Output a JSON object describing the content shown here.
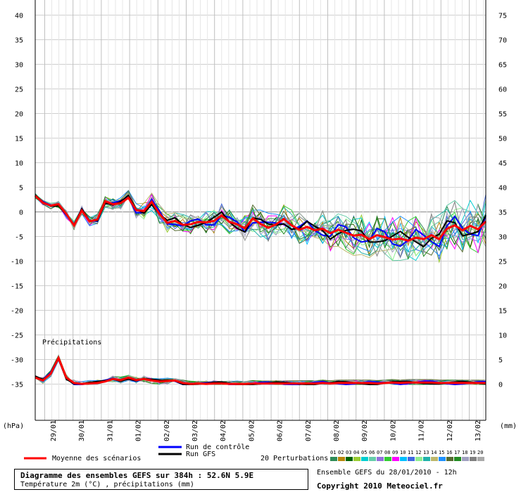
{
  "chart_data": {
    "type": "line",
    "left_axis": {
      "ticks": [
        40,
        35,
        30,
        25,
        20,
        15,
        10,
        5,
        0,
        -5,
        -10,
        -15,
        -20,
        -25,
        -30,
        -35
      ],
      "unit": "(hPa)"
    },
    "right_axis": {
      "ticks": [
        75,
        70,
        65,
        60,
        55,
        50,
        45,
        40,
        35,
        30,
        25,
        20,
        15,
        10,
        5,
        0
      ],
      "unit": "(mm)"
    },
    "x_labels": [
      "29/01",
      "30/01",
      "31/01",
      "01/02",
      "02/02",
      "03/02",
      "04/02",
      "05/02",
      "06/02",
      "07/02",
      "08/02",
      "09/02",
      "10/02",
      "11/02",
      "12/02",
      "13/02"
    ],
    "precip_label": "Précipitations",
    "legend": {
      "mean": "Moyenne des scénarios",
      "control": "Run de contrôle",
      "gfs": "Run GFS",
      "perturbations": "20 Perturbations",
      "perturbation_ids": [
        "01",
        "02",
        "03",
        "04",
        "05",
        "06",
        "07",
        "08",
        "09",
        "10",
        "11",
        "12",
        "13",
        "14",
        "15",
        "16",
        "17",
        "18",
        "19",
        "20"
      ],
      "perturbation_colors": [
        "#2e8b57",
        "#b8860b",
        "#006400",
        "#9acd32",
        "#00ced1",
        "#66cdaa",
        "#9370db",
        "#32cd32",
        "#ff00ff",
        "#00bfff",
        "#4169e1",
        "#90ee90",
        "#20b2aa",
        "#bdb76b",
        "#1e90ff",
        "#556b2f",
        "#228b22",
        "#a0a0c0",
        "#808080",
        "#a9a9a9"
      ]
    },
    "colors": {
      "mean": "#ff0000",
      "control": "#0000ff",
      "gfs": "#000000"
    },
    "temperature_mean": [
      3.2,
      1.8,
      1.2,
      1.5,
      -0.5,
      -2.8,
      0.2,
      -2.0,
      -1.6,
      2.1,
      1.5,
      1.7,
      2.8,
      0.3,
      0.1,
      2.0,
      -0.5,
      -2.3,
      -1.9,
      -2.7,
      -2.6,
      -2.1,
      -2.2,
      -1.9,
      -0.8,
      -2.1,
      -2.6,
      -3.4,
      -1.4,
      -2.5,
      -3.3,
      -2.6,
      -1.5,
      -2.8,
      -3.7,
      -3.1,
      -3.8,
      -3.5,
      -4.4,
      -3.7,
      -4.3,
      -4.9,
      -4.7,
      -5.6,
      -4.8,
      -5.2,
      -5.7,
      -5.5,
      -5.9,
      -5.3,
      -5.6,
      -4.8,
      -5.6,
      -3.5,
      -2.8,
      -3.8,
      -2.9,
      -3.6,
      -2.0
    ],
    "precip_mean_mm": [
      1.4,
      0.8,
      2.2,
      5.4,
      1.4,
      0.3,
      0.1,
      0.2,
      0.3,
      0.6,
      1.1,
      0.9,
      1.4,
      0.9,
      1.1,
      0.8,
      0.6,
      0.7,
      0.8,
      0.3,
      0.1,
      0.2,
      0.1,
      0.2,
      0.2,
      0.1,
      0.1,
      0.1,
      0.2,
      0.2,
      0.2,
      0.2,
      0.2,
      0.2,
      0.2,
      0.2,
      0.2,
      0.3,
      0.2,
      0.3,
      0.3,
      0.3,
      0.3,
      0.3,
      0.2,
      0.3,
      0.4,
      0.3,
      0.4,
      0.4,
      0.4,
      0.4,
      0.3,
      0.3,
      0.3,
      0.3,
      0.3,
      0.3,
      0.3
    ],
    "footer": {
      "title": "Diagramme des ensembles GEFS sur 384h : 52.6N 5.9E",
      "subtitle": "Température 2m (°C) , précipitations (mm)",
      "ensemble_date": "Ensemble GEFS du 28/01/2010 - 12h",
      "copyright": "Copyright 2010 Meteociel.fr"
    }
  }
}
